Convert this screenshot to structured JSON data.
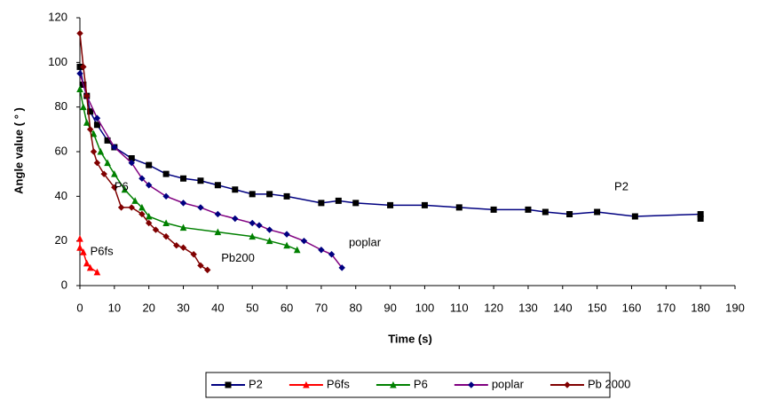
{
  "chart_data": {
    "type": "line",
    "y_label": "Angle value ( ° )",
    "x_label": "Time (s)",
    "xlim": [
      0,
      190
    ],
    "xticks": [
      0,
      10,
      20,
      30,
      40,
      50,
      60,
      70,
      80,
      90,
      100,
      110,
      120,
      130,
      140,
      150,
      160,
      170,
      180,
      190
    ],
    "ylim": [
      0,
      120
    ],
    "yticks": [
      0,
      20,
      40,
      60,
      80,
      100,
      120
    ],
    "grid": false,
    "legend": "bottom",
    "series": [
      {
        "name": "P2",
        "color": "#000080",
        "marker": "square",
        "marker_color": "#000000",
        "x": [
          0,
          1,
          2,
          3,
          5,
          8,
          10,
          15,
          20,
          25,
          30,
          35,
          40,
          45,
          50,
          55,
          60,
          70,
          75,
          80,
          90,
          100,
          110,
          120,
          130,
          135,
          142,
          150,
          161,
          180,
          180
        ],
        "values": [
          98,
          90,
          85,
          78,
          72,
          65,
          62,
          57,
          54,
          50,
          48,
          47,
          45,
          43,
          41,
          41,
          40,
          37,
          38,
          37,
          36,
          36,
          35,
          34,
          34,
          33,
          32,
          33,
          31,
          32,
          30
        ]
      },
      {
        "name": "P6fs",
        "color": "#ff0000",
        "marker": "triangle",
        "marker_color": "#ff0000",
        "x": [
          0,
          0,
          1,
          2,
          3,
          5
        ],
        "values": [
          21,
          17,
          15,
          10,
          8,
          6
        ]
      },
      {
        "name": "P6",
        "color": "#008000",
        "marker": "triangle",
        "marker_color": "#008000",
        "x": [
          0,
          1,
          2,
          4,
          6,
          8,
          10,
          13,
          16,
          18,
          20,
          25,
          30,
          40,
          50,
          55,
          60,
          63
        ],
        "values": [
          88,
          80,
          73,
          68,
          60,
          55,
          50,
          43,
          38,
          35,
          31,
          28,
          26,
          24,
          22,
          20,
          18,
          16
        ]
      },
      {
        "name": "poplar",
        "color": "#800080",
        "marker": "diamond",
        "marker_color": "#000080",
        "x": [
          0,
          2,
          5,
          10,
          15,
          18,
          20,
          25,
          30,
          35,
          40,
          45,
          50,
          52,
          55,
          60,
          65,
          70,
          73,
          76
        ],
        "values": [
          95,
          85,
          75,
          62,
          55,
          48,
          45,
          40,
          37,
          35,
          32,
          30,
          28,
          27,
          25,
          23,
          20,
          16,
          14,
          8
        ]
      },
      {
        "name": "Pb 2000",
        "color": "#800000",
        "marker": "diamond",
        "marker_color": "#800000",
        "x": [
          0,
          1,
          2,
          3,
          4,
          5,
          7,
          10,
          12,
          15,
          18,
          20,
          22,
          25,
          28,
          30,
          33,
          35,
          37
        ],
        "values": [
          113,
          98,
          85,
          70,
          60,
          55,
          50,
          44,
          35,
          35,
          32,
          28,
          25,
          22,
          18,
          17,
          14,
          9,
          7
        ]
      }
    ],
    "annotations": [
      {
        "text": "P2",
        "x": 155,
        "y": 44
      },
      {
        "text": "P6",
        "x": 10,
        "y": 44
      },
      {
        "text": "P6fs",
        "x": 3,
        "y": 15
      },
      {
        "text": "Pb200",
        "x": 41,
        "y": 12
      },
      {
        "text": "poplar",
        "x": 78,
        "y": 19
      }
    ]
  }
}
